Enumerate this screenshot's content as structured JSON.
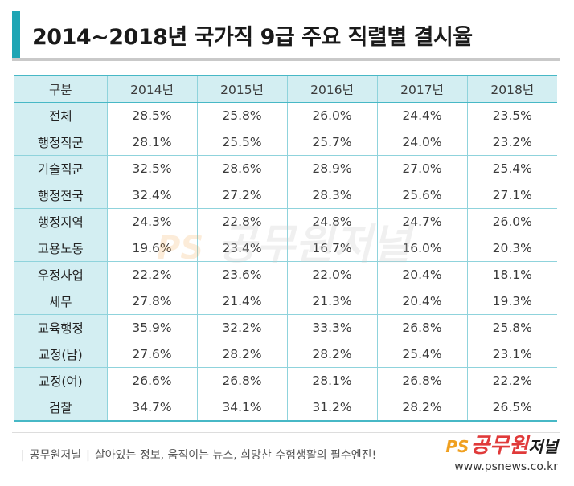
{
  "title": "2014~2018년 국가직 9급 주요 직렬별 결시율",
  "colors": {
    "accent": "#1fa5b4",
    "header_bg": "#d3eef2",
    "border": "#8fd3dc"
  },
  "table": {
    "headers": [
      "구분",
      "2014년",
      "2015년",
      "2016년",
      "2017년",
      "2018년"
    ],
    "rows": [
      {
        "label": "전체",
        "values": [
          "28.5%",
          "25.8%",
          "26.0%",
          "24.4%",
          "23.5%"
        ]
      },
      {
        "label": "행정직군",
        "values": [
          "28.1%",
          "25.5%",
          "25.7%",
          "24.0%",
          "23.2%"
        ]
      },
      {
        "label": "기술직군",
        "values": [
          "32.5%",
          "28.6%",
          "28.9%",
          "27.0%",
          "25.4%"
        ]
      },
      {
        "label": "행정전국",
        "values": [
          "32.4%",
          "27.2%",
          "28.3%",
          "25.6%",
          "27.1%"
        ]
      },
      {
        "label": "행정지역",
        "values": [
          "24.3%",
          "22.8%",
          "24.8%",
          "24.7%",
          "26.0%"
        ]
      },
      {
        "label": "고용노동",
        "values": [
          "19.6%",
          "23.4%",
          "16.7%",
          "16.0%",
          "20.3%"
        ]
      },
      {
        "label": "우정사업",
        "values": [
          "22.2%",
          "23.6%",
          "22.0%",
          "20.4%",
          "18.1%"
        ]
      },
      {
        "label": "세무",
        "values": [
          "27.8%",
          "21.4%",
          "21.3%",
          "20.4%",
          "19.3%"
        ]
      },
      {
        "label": "교육행정",
        "values": [
          "35.9%",
          "32.2%",
          "33.3%",
          "26.8%",
          "25.8%"
        ]
      },
      {
        "label": "교정(남)",
        "values": [
          "27.6%",
          "28.2%",
          "28.2%",
          "25.4%",
          "23.1%"
        ]
      },
      {
        "label": "교정(여)",
        "values": [
          "26.6%",
          "26.8%",
          "28.1%",
          "26.8%",
          "22.2%"
        ]
      },
      {
        "label": "검찰",
        "values": [
          "34.7%",
          "34.1%",
          "31.2%",
          "28.2%",
          "26.5%"
        ]
      }
    ]
  },
  "watermark": {
    "ps": "PS",
    "text": "공무원저널"
  },
  "footer": {
    "brand": "공무원저널",
    "slogan": "살아있는 정보, 움직이는 뉴스, 희망찬 수험생활의 필수엔진!"
  },
  "logo": {
    "ps": "PS",
    "name_main": "공무원",
    "name_sub": "저널",
    "url": "www.psnews.co.kr"
  }
}
